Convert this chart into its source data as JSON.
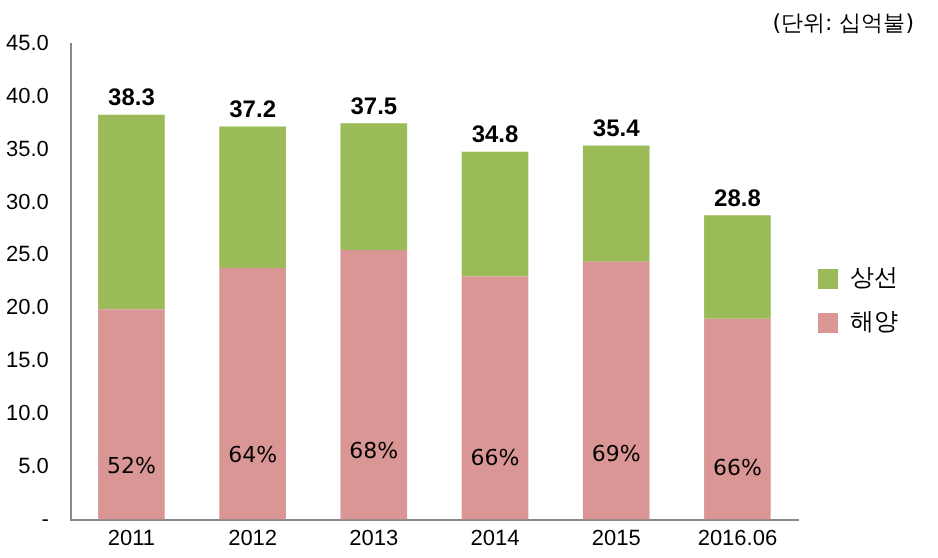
{
  "chart_data": {
    "type": "bar",
    "stacked": true,
    "categories": [
      "2011",
      "2012",
      "2013",
      "2014",
      "2015",
      "2016.06"
    ],
    "series": [
      {
        "name": "해양",
        "color": "#d99694",
        "values": [
          19.9,
          23.8,
          25.5,
          23.0,
          24.4,
          19.0
        ]
      },
      {
        "name": "상선",
        "color": "#9bbb59",
        "values": [
          18.4,
          13.4,
          12.0,
          11.8,
          11.0,
          9.8
        ]
      }
    ],
    "totals": [
      "38.3",
      "37.2",
      "37.5",
      "34.8",
      "35.4",
      "28.8"
    ],
    "ylim": [
      0,
      45
    ],
    "yticks": [
      {
        "value": 0,
        "label": "-"
      },
      {
        "value": 5,
        "label": "5.0"
      },
      {
        "value": 10,
        "label": "10.0"
      },
      {
        "value": 15,
        "label": "15.0"
      },
      {
        "value": 20,
        "label": "20.0"
      },
      {
        "value": 25,
        "label": "25.0"
      },
      {
        "value": 30,
        "label": "30.0"
      },
      {
        "value": 35,
        "label": "35.0"
      },
      {
        "value": 40,
        "label": "40.0"
      },
      {
        "value": 45,
        "label": "45.0"
      }
    ],
    "grid": false,
    "legend": "right",
    "annotations": [
      "(단위: 십억불)",
      "52%",
      "64%",
      "68%",
      "66%",
      "69%",
      "66%"
    ]
  }
}
